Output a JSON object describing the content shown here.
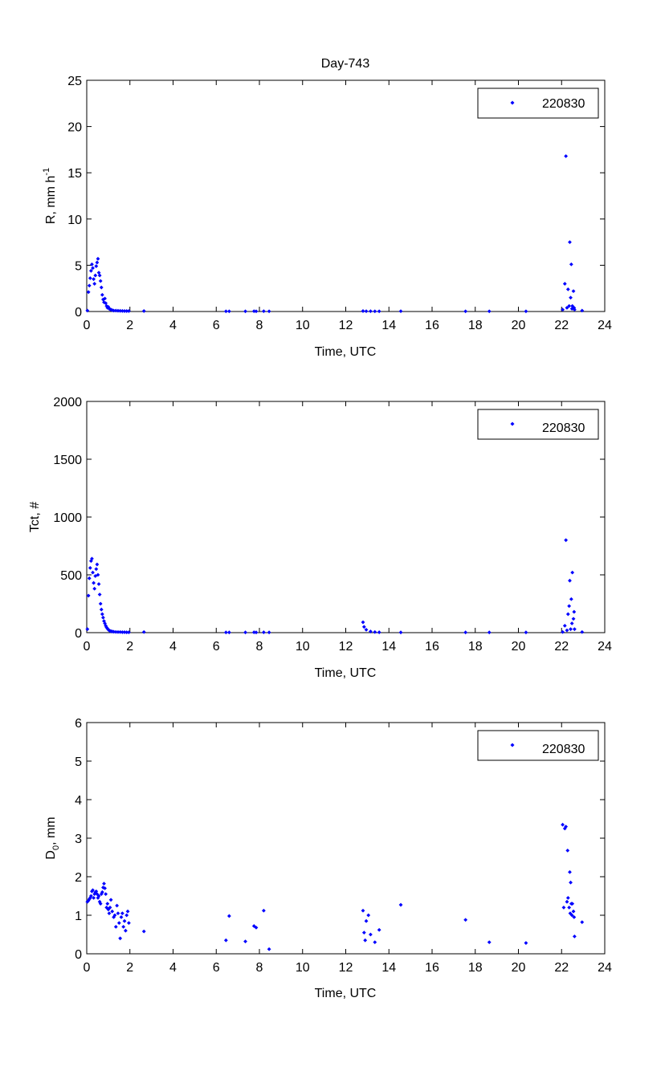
{
  "chart_data": [
    {
      "type": "scatter",
      "title": "Day-743",
      "xlabel": "Time, UTC",
      "ylabel": "R, mm h",
      "ylabel_superscript": "-1",
      "xlim": [
        0,
        24
      ],
      "ylim": [
        0,
        25
      ],
      "xticks": [
        "0",
        "2",
        "4",
        "6",
        "8",
        "10",
        "12",
        "14",
        "16",
        "18",
        "20",
        "22",
        "24"
      ],
      "yticks": [
        "0",
        "5",
        "10",
        "15",
        "20",
        "25"
      ],
      "grid": false,
      "legend_position": "top-right",
      "marker_color": "#0000ff",
      "series": [
        {
          "name": "220830",
          "x": [
            0.03,
            0.08,
            0.12,
            0.16,
            0.2,
            0.24,
            0.28,
            0.32,
            0.36,
            0.4,
            0.44,
            0.48,
            0.52,
            0.56,
            0.6,
            0.64,
            0.68,
            0.72,
            0.76,
            0.8,
            0.84,
            0.88,
            0.92,
            0.96,
            1.0,
            1.04,
            1.08,
            1.12,
            1.18,
            1.25,
            1.35,
            1.45,
            1.55,
            1.65,
            1.75,
            1.85,
            1.95,
            2.65,
            6.45,
            6.6,
            7.35,
            7.75,
            7.85,
            8.2,
            8.45,
            12.8,
            12.95,
            13.15,
            13.35,
            13.55,
            14.55,
            17.55,
            18.65,
            20.35,
            22.05,
            22.15,
            22.2,
            22.25,
            22.3,
            22.35,
            22.38,
            22.42,
            22.45,
            22.48,
            22.5,
            22.55,
            22.58,
            22.6,
            22.95
          ],
          "y": [
            0.1,
            2.1,
            2.8,
            3.6,
            4.4,
            5.1,
            4.7,
            3.5,
            3.0,
            3.9,
            4.9,
            5.3,
            5.7,
            4.2,
            3.9,
            3.3,
            2.6,
            1.8,
            1.3,
            1.0,
            1.4,
            0.9,
            0.6,
            0.4,
            0.5,
            0.3,
            0.25,
            0.2,
            0.15,
            0.1,
            0.1,
            0.08,
            0.07,
            0.06,
            0.05,
            0.05,
            0.05,
            0.05,
            0.02,
            0.02,
            0.02,
            0.03,
            0.02,
            0.03,
            0.02,
            0.05,
            0.03,
            0.03,
            0.02,
            0.02,
            0.03,
            0.02,
            0.02,
            0.02,
            0.2,
            3.0,
            16.8,
            0.4,
            2.4,
            0.6,
            7.5,
            1.5,
            5.1,
            0.3,
            0.6,
            2.2,
            0.4,
            0.2,
            0.1
          ]
        }
      ]
    },
    {
      "type": "scatter",
      "title": "",
      "xlabel": "Time, UTC",
      "ylabel": "Tct, #",
      "xlim": [
        0,
        24
      ],
      "ylim": [
        0,
        2000
      ],
      "xticks": [
        "0",
        "2",
        "4",
        "6",
        "8",
        "10",
        "12",
        "14",
        "16",
        "18",
        "20",
        "22",
        "24"
      ],
      "yticks": [
        "0",
        "500",
        "1000",
        "1500",
        "2000"
      ],
      "grid": false,
      "legend_position": "top-right",
      "marker_color": "#0000ff",
      "series": [
        {
          "name": "220830",
          "x": [
            0.03,
            0.08,
            0.12,
            0.16,
            0.2,
            0.24,
            0.28,
            0.32,
            0.36,
            0.4,
            0.44,
            0.48,
            0.52,
            0.56,
            0.6,
            0.64,
            0.68,
            0.72,
            0.76,
            0.8,
            0.84,
            0.88,
            0.92,
            0.96,
            1.0,
            1.04,
            1.08,
            1.12,
            1.18,
            1.25,
            1.35,
            1.45,
            1.55,
            1.65,
            1.75,
            1.85,
            1.95,
            2.65,
            6.45,
            6.6,
            7.35,
            7.75,
            7.85,
            8.2,
            8.45,
            12.8,
            12.85,
            12.95,
            13.15,
            13.35,
            13.55,
            14.55,
            17.55,
            18.65,
            20.35,
            22.05,
            22.15,
            22.2,
            22.25,
            22.3,
            22.35,
            22.38,
            22.42,
            22.45,
            22.48,
            22.5,
            22.55,
            22.58,
            22.6,
            22.95
          ],
          "y": [
            30,
            320,
            470,
            560,
            620,
            640,
            520,
            430,
            380,
            490,
            550,
            590,
            500,
            420,
            330,
            250,
            200,
            160,
            130,
            100,
            80,
            60,
            45,
            35,
            25,
            20,
            15,
            12,
            10,
            8,
            6,
            5,
            5,
            4,
            4,
            3,
            3,
            5,
            2,
            2,
            2,
            3,
            2,
            3,
            2,
            90,
            50,
            25,
            10,
            5,
            3,
            2,
            2,
            2,
            2,
            5,
            60,
            800,
            20,
            160,
            230,
            450,
            30,
            290,
            80,
            520,
            120,
            180,
            30,
            5
          ]
        }
      ]
    },
    {
      "type": "scatter",
      "title": "",
      "xlabel": "Time, UTC",
      "ylabel": "D",
      "ylabel_subscript": "0",
      "ylabel_suffix": ", mm",
      "xlim": [
        0,
        24
      ],
      "ylim": [
        0,
        6
      ],
      "xticks": [
        "0",
        "2",
        "4",
        "6",
        "8",
        "10",
        "12",
        "14",
        "16",
        "18",
        "20",
        "22",
        "24"
      ],
      "yticks": [
        "0",
        "1",
        "2",
        "3",
        "4",
        "5",
        "6"
      ],
      "grid": false,
      "legend_position": "top-right",
      "marker_color": "#0000ff",
      "series": [
        {
          "name": "220830",
          "x": [
            0.03,
            0.08,
            0.12,
            0.16,
            0.2,
            0.24,
            0.28,
            0.32,
            0.36,
            0.4,
            0.44,
            0.48,
            0.52,
            0.56,
            0.6,
            0.64,
            0.68,
            0.72,
            0.76,
            0.8,
            0.84,
            0.88,
            0.92,
            0.96,
            1.0,
            1.04,
            1.08,
            1.12,
            1.18,
            1.25,
            1.3,
            1.35,
            1.4,
            1.45,
            1.5,
            1.55,
            1.6,
            1.65,
            1.7,
            1.75,
            1.8,
            1.85,
            1.9,
            1.95,
            2.65,
            6.45,
            6.6,
            7.35,
            7.75,
            7.85,
            8.2,
            8.45,
            12.8,
            12.85,
            12.9,
            12.95,
            13.05,
            13.15,
            13.35,
            13.55,
            14.55,
            17.55,
            18.65,
            20.35,
            22.05,
            22.1,
            22.15,
            22.2,
            22.25,
            22.28,
            22.3,
            22.35,
            22.38,
            22.4,
            22.42,
            22.45,
            22.48,
            22.5,
            22.55,
            22.58,
            22.6,
            22.95
          ],
          "y": [
            1.35,
            1.38,
            1.42,
            1.45,
            1.5,
            1.62,
            1.65,
            1.45,
            1.55,
            1.6,
            1.62,
            1.55,
            1.45,
            1.5,
            1.35,
            1.3,
            1.55,
            1.6,
            1.72,
            1.82,
            1.7,
            1.55,
            1.2,
            1.3,
            1.15,
            1.05,
            1.2,
            1.4,
            1.1,
            0.95,
            1.0,
            0.7,
            1.25,
            1.05,
            0.8,
            0.4,
            0.95,
            1.05,
            0.7,
            0.85,
            0.6,
            1.0,
            1.1,
            0.8,
            0.58,
            0.35,
            0.98,
            0.32,
            0.72,
            0.68,
            1.12,
            0.12,
            1.12,
            0.55,
            0.35,
            0.85,
            1.0,
            0.5,
            0.3,
            0.62,
            1.27,
            0.88,
            0.3,
            0.28,
            3.35,
            1.2,
            3.25,
            3.3,
            1.35,
            2.68,
            1.45,
            1.2,
            2.12,
            1.05,
            1.85,
            1.3,
            1.0,
            1.3,
            1.1,
            0.95,
            0.45,
            0.82
          ]
        }
      ]
    }
  ]
}
